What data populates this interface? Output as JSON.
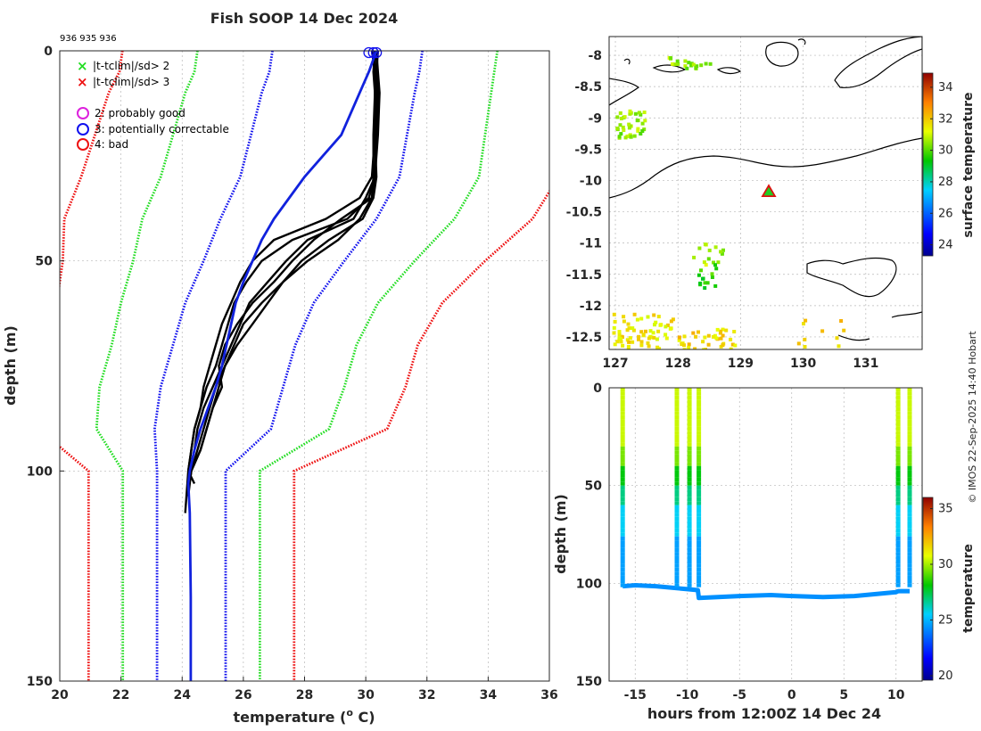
{
  "chart_data": [
    {
      "type": "line",
      "name": "profile",
      "title": "Fish SOOP 14 Dec 2024",
      "cast_ids": "936 935 936",
      "xlabel": "temperature (",
      "xlabel_sup": "o",
      "xlabel_end": " C)",
      "ylabel": "depth (m)",
      "xlim": [
        20,
        36
      ],
      "ylim": [
        0,
        150
      ],
      "xticks": [
        20,
        22,
        24,
        26,
        28,
        30,
        32,
        34,
        36
      ],
      "yticks": [
        0,
        50,
        100,
        150
      ],
      "legend": [
        {
          "label": "|t-tclim|/sd> 2",
          "color": "#22dd22",
          "marker": "x"
        },
        {
          "label": "|t-tclim|/sd> 3",
          "color": "#ee1111",
          "marker": "x"
        },
        {
          "label": "2: probably good",
          "color": "#dd22dd",
          "marker": "o"
        },
        {
          "label": "3: potentially correctable",
          "color": "#1111ee",
          "marker": "o"
        },
        {
          "label": "4: bad",
          "color": "#ee1111",
          "marker": "o"
        }
      ],
      "climatology": {
        "depths": [
          0,
          5,
          10,
          20,
          30,
          40,
          50,
          60,
          70,
          75,
          80,
          90,
          100,
          150
        ],
        "mean": [
          29.4,
          29.3,
          29.1,
          28.8,
          28.5,
          27.8,
          27.0,
          26.2,
          25.7,
          25.5,
          25.3,
          25.0,
          24.3,
          24.3
        ],
        "sd": [
          2.45,
          2.45,
          2.5,
          2.55,
          2.6,
          2.55,
          2.3,
          2.1,
          2.0,
          2.0,
          2.0,
          1.9,
          1.12,
          1.12
        ],
        "envelope_colors": {
          "1sd": "#1111ee",
          "2sd": "#22dd22",
          "3sd": "#ee1111"
        }
      },
      "mean_profile": {
        "color": "#1122dd",
        "depths": [
          0,
          5,
          10,
          15,
          20,
          25,
          30,
          35,
          40,
          45,
          50,
          55,
          60,
          65,
          70,
          75,
          80,
          85,
          90,
          95,
          100,
          103,
          110,
          130,
          150
        ],
        "temps": [
          30.35,
          30.1,
          29.8,
          29.5,
          29.2,
          28.6,
          28.0,
          27.5,
          27.0,
          26.6,
          26.3,
          26.0,
          25.75,
          25.6,
          25.45,
          25.3,
          25.1,
          24.85,
          24.6,
          24.4,
          24.25,
          24.2,
          24.25,
          24.28,
          24.28
        ]
      },
      "casts": [
        {
          "depths": [
            0,
            5,
            10,
            20,
            30,
            35,
            40,
            45,
            50,
            55,
            60,
            65,
            70,
            75,
            80,
            85,
            90,
            95,
            100,
            105,
            110
          ],
          "temps": [
            30.3,
            30.3,
            30.35,
            30.35,
            30.3,
            30.1,
            29.4,
            27.6,
            26.6,
            26.1,
            25.7,
            25.5,
            25.3,
            25.1,
            24.8,
            24.6,
            24.4,
            24.3,
            24.2,
            24.15,
            24.1
          ]
        },
        {
          "depths": [
            0,
            5,
            10,
            20,
            30,
            35,
            40,
            45,
            50,
            55,
            60,
            65,
            70,
            75,
            80,
            85,
            90,
            95,
            100,
            105
          ],
          "temps": [
            30.3,
            30.25,
            30.3,
            30.3,
            30.35,
            30.25,
            29.9,
            28.8,
            27.9,
            27.3,
            26.6,
            26.0,
            25.7,
            25.4,
            25.1,
            24.9,
            24.7,
            24.5,
            24.3,
            24.2
          ]
        },
        {
          "depths": [
            0,
            5,
            10,
            20,
            30,
            35,
            40,
            45,
            50,
            55,
            60,
            65,
            70,
            75,
            80,
            85,
            90,
            95,
            100,
            105
          ],
          "temps": [
            30.35,
            30.4,
            30.45,
            30.4,
            30.3,
            30.0,
            29.6,
            28.1,
            27.4,
            26.8,
            26.2,
            25.9,
            25.6,
            25.3,
            25.0,
            24.7,
            24.5,
            24.4,
            24.25,
            24.2
          ]
        },
        {
          "depths": [
            0,
            5,
            10,
            20,
            30,
            35,
            40,
            45,
            50,
            55,
            60,
            65,
            70,
            75,
            80,
            85,
            90,
            95,
            100,
            104
          ],
          "temps": [
            30.2,
            30.3,
            30.3,
            30.25,
            30.25,
            30.2,
            29.2,
            28.3,
            27.6,
            27.0,
            26.3,
            25.8,
            25.4,
            25.2,
            25.3,
            25.0,
            24.8,
            24.6,
            24.3,
            24.2
          ]
        },
        {
          "depths": [
            0,
            5,
            10,
            20,
            30,
            35,
            40,
            45,
            50,
            55,
            60,
            65,
            70,
            75,
            80,
            85,
            90,
            95,
            100,
            103
          ],
          "temps": [
            30.3,
            30.3,
            30.35,
            30.3,
            30.2,
            29.8,
            28.7,
            27.0,
            26.3,
            25.9,
            25.6,
            25.3,
            25.1,
            24.9,
            24.7,
            24.6,
            24.4,
            24.3,
            24.2,
            24.4
          ]
        },
        {
          "depths": [
            0,
            5,
            10,
            20,
            30,
            35,
            40,
            45,
            50,
            55,
            60,
            65,
            70,
            75,
            80,
            85,
            90,
            95,
            100,
            106
          ],
          "temps": [
            30.4,
            30.35,
            30.4,
            30.35,
            30.3,
            30.2,
            29.8,
            29.1,
            28.1,
            27.3,
            26.8,
            26.3,
            25.8,
            25.4,
            25.2,
            25.0,
            24.8,
            24.6,
            24.3,
            24.2
          ]
        }
      ],
      "surface_markers": [
        30.1,
        30.25,
        30.35
      ]
    },
    {
      "type": "scatter",
      "name": "map",
      "xlim": [
        126.9,
        131.9
      ],
      "ylim": [
        -12.7,
        -7.7
      ],
      "xticks": [
        127,
        128,
        129,
        130,
        131
      ],
      "yticks": [
        -8,
        -8.5,
        -9,
        -9.5,
        -10,
        -10.5,
        -11,
        -11.5,
        -12,
        -12.5
      ],
      "colorbar": {
        "label": "surface temperature",
        "range": [
          23.3,
          34.9
        ],
        "ticks": [
          24,
          26,
          28,
          30,
          32,
          34
        ]
      },
      "station": {
        "lon": 129.45,
        "lat": -10.18
      },
      "clusters": [
        {
          "lon": [
            127.8,
            128.5
          ],
          "lat": [
            -8.2,
            -8.0
          ],
          "temp": 30.5,
          "n": 20
        },
        {
          "lon": [
            127.0,
            127.45
          ],
          "lat": [
            -9.3,
            -8.85
          ],
          "temp": 30.5,
          "n": 40
        },
        {
          "lon": [
            128.2,
            128.7
          ],
          "lat": [
            -11.35,
            -10.95
          ],
          "temp": 30.7,
          "n": 14
        },
        {
          "lon": [
            128.3,
            128.6
          ],
          "lat": [
            -11.7,
            -11.3
          ],
          "temp": 29.6,
          "n": 14
        },
        {
          "lon": [
            126.95,
            127.9
          ],
          "lat": [
            -12.7,
            -12.1
          ],
          "temp": 31.6,
          "n": 70
        },
        {
          "lon": [
            127.9,
            128.9
          ],
          "lat": [
            -12.7,
            -12.35
          ],
          "temp": 31.8,
          "n": 40
        },
        {
          "lon": [
            129.9,
            130.7
          ],
          "lat": [
            -12.7,
            -12.1
          ],
          "temp": 32.0,
          "n": 10
        }
      ]
    },
    {
      "type": "line",
      "name": "timeseries",
      "xlabel": "hours from 12:00Z 14 Dec 24",
      "ylabel": "depth (m)",
      "xlim": [
        -17.5,
        12.5
      ],
      "ylim": [
        0,
        150
      ],
      "xticks": [
        -15,
        -10,
        -5,
        0,
        5,
        10
      ],
      "yticks": [
        0,
        50,
        100,
        150
      ],
      "colorbar": {
        "label": "temperature",
        "range": [
          19.6,
          36.0
        ],
        "ticks": [
          20,
          25,
          30,
          35
        ]
      },
      "cast_hours": [
        -16.2,
        -11.0,
        -9.8,
        -8.9,
        10.2,
        11.3
      ],
      "bottom_track": {
        "hours": [
          -16.2,
          -15.0,
          -13.0,
          -11.0,
          -10.0,
          -9.0,
          -8.9,
          -5.0,
          -2.0,
          0.0,
          3.0,
          6.0,
          10.0,
          10.2,
          11.3
        ],
        "depths": [
          101.5,
          101.0,
          101.5,
          102.5,
          103.0,
          103.5,
          107.5,
          106.5,
          106.0,
          106.5,
          107.0,
          106.5,
          104.5,
          104.0,
          104.0
        ]
      }
    }
  ],
  "credit": "© IMOS 22-Sep-2025 14:40 Hobart"
}
